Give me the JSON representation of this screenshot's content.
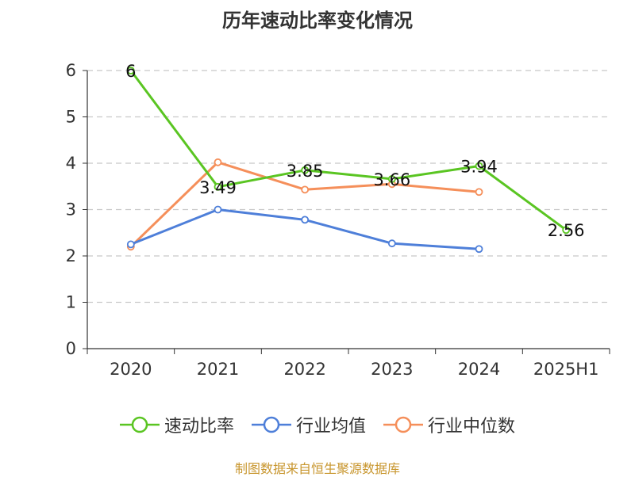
{
  "title": "历年速动比率变化情况",
  "source_text": "制图数据来自恒生聚源数据库",
  "chart_data": {
    "type": "line",
    "title": "历年速动比率变化情况",
    "xlabel": "",
    "ylabel": "",
    "categories": [
      "2020",
      "2021",
      "2022",
      "2023",
      "2024",
      "2025H1"
    ],
    "ylim": [
      0,
      6
    ],
    "yticks": [
      0,
      1,
      2,
      3,
      4,
      5,
      6
    ],
    "grid": true,
    "legend_position": "bottom",
    "series": [
      {
        "name": "速动比率",
        "color": "#5ac522",
        "values": [
          6,
          3.49,
          3.85,
          3.66,
          3.94,
          2.56
        ],
        "labels": [
          "6",
          "3.49",
          "3.85",
          "3.66",
          "3.94",
          "2.56"
        ]
      },
      {
        "name": "行业均值",
        "color": "#4e7fd9",
        "values": [
          2.25,
          3.0,
          2.78,
          2.27,
          2.15,
          null
        ]
      },
      {
        "name": "行业中位数",
        "color": "#f58f5a",
        "values": [
          2.2,
          4.02,
          3.43,
          3.55,
          3.38,
          null
        ]
      }
    ]
  }
}
